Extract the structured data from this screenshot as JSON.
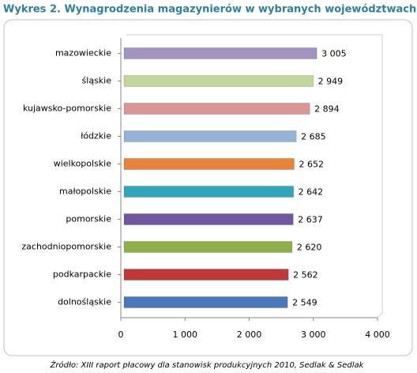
{
  "chart_data": {
    "type": "bar",
    "orientation": "horizontal",
    "title": "Wykres 2. Wynagrodzenia magazynierów w wybranych województwach",
    "source": "Źródło: XIII raport płacowy dla stanowisk produkcyjnych 2010, Sedlak & Sedlak",
    "categories": [
      "mazowieckie",
      "śląskie",
      "kujawsko-pomorskie",
      "łódzkie",
      "wielkopolskie",
      "małopolskie",
      "pomorskie",
      "zachodniopomorskie",
      "podkarpackie",
      "dolnośląskie"
    ],
    "values": [
      3005,
      2949,
      2894,
      2685,
      2652,
      2642,
      2637,
      2620,
      2562,
      2549
    ],
    "value_labels": [
      "3 005",
      "2 949",
      "2 894",
      "2 685",
      "2 652",
      "2 642",
      "2 637",
      "2 620",
      "2 562",
      "2 549"
    ],
    "colors": [
      "#a193c2",
      "#c3d69b",
      "#d99694",
      "#95b3d7",
      "#e8843a",
      "#31a6b8",
      "#7156a1",
      "#8eb04a",
      "#c0393a",
      "#4a78b8"
    ],
    "xlim": [
      0,
      4000
    ],
    "xticks": [
      0,
      {
        "value": 1000,
        "label": "1 000"
      },
      {
        "value": 2000,
        "label": "2 000"
      },
      {
        "value": 3000,
        "label": "3 000"
      },
      {
        "value": 4000,
        "label": "4 000"
      }
    ],
    "grid": false
  }
}
